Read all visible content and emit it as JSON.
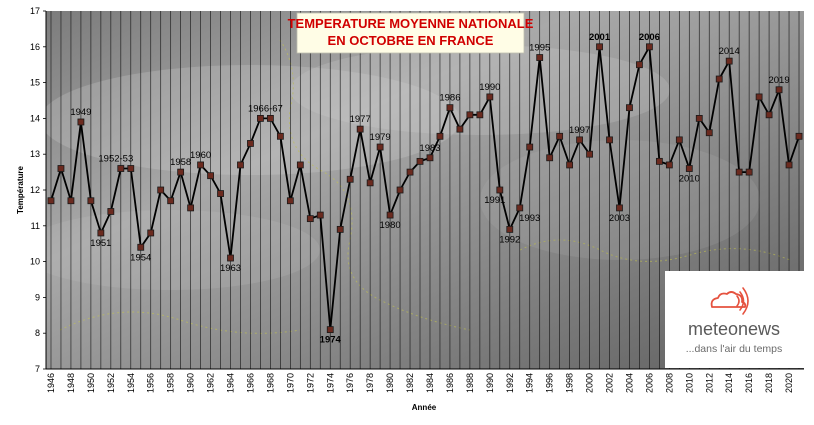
{
  "chart_data": {
    "type": "line",
    "title_lines": [
      "TEMPERATURE MOYENNE NATIONALE",
      "EN OCTOBRE EN FRANCE"
    ],
    "xlabel": "Année",
    "ylabel": "Température",
    "ylim": [
      7,
      17
    ],
    "yticks": [
      7,
      8,
      9,
      10,
      11,
      12,
      13,
      14,
      15,
      16,
      17
    ],
    "xlim": [
      1946,
      2021
    ],
    "xtick_labels": [
      "1946",
      "1948",
      "1950",
      "1952",
      "1954",
      "1956",
      "1958",
      "1960",
      "1962",
      "1964",
      "1966",
      "1968",
      "1970",
      "1972",
      "1974",
      "1976",
      "1978",
      "1980",
      "1982",
      "1984",
      "1986",
      "1988",
      "1990",
      "1992",
      "1994",
      "1996",
      "1998",
      "2000",
      "2002",
      "2004",
      "2006",
      "2008",
      "2010",
      "2012",
      "2014",
      "2016",
      "2018",
      "2020"
    ],
    "grid": "vertical",
    "series": [
      {
        "x": [
          1946,
          1947,
          1948,
          1949,
          1950,
          1951,
          1952,
          1953,
          1954,
          1955,
          1956,
          1957,
          1958,
          1959,
          1960,
          1961,
          1962,
          1963,
          1964,
          1965,
          1966,
          1967,
          1968,
          1969,
          1970,
          1971,
          1972,
          1973,
          1974,
          1975,
          1976,
          1977,
          1978,
          1979,
          1980,
          1981,
          1982,
          1983,
          1984,
          1985,
          1986,
          1987,
          1988,
          1989,
          1990,
          1991,
          1992,
          1993,
          1994,
          1995,
          1996,
          1997,
          1998,
          1999,
          2000,
          2001,
          2002,
          2003,
          2004,
          2005,
          2006,
          2007,
          2008,
          2009,
          2010,
          2011,
          2012,
          2013,
          2014,
          2015,
          2016,
          2017,
          2018,
          2019,
          2020,
          2021
        ],
        "y": [
          11.7,
          12.6,
          11.7,
          13.9,
          11.7,
          10.8,
          11.4,
          12.6,
          12.6,
          10.4,
          10.8,
          12.0,
          11.7,
          12.5,
          11.5,
          12.7,
          12.4,
          11.9,
          10.1,
          12.7,
          13.3,
          14.0,
          14.0,
          13.5,
          11.7,
          12.7,
          11.2,
          11.3,
          8.1,
          10.9,
          12.3,
          13.7,
          12.2,
          13.2,
          11.3,
          12.0,
          12.5,
          12.8,
          12.9,
          13.5,
          14.3,
          13.7,
          14.1,
          14.1,
          14.6,
          12.0,
          10.9,
          11.5,
          13.2,
          15.7,
          12.9,
          13.5,
          12.7,
          13.4,
          13.0,
          16.0,
          13.4,
          11.5,
          14.3,
          15.5,
          16.0,
          12.8,
          12.7,
          13.4,
          12.6,
          14.0,
          13.6,
          15.1,
          15.6,
          12.5,
          12.5,
          14.6,
          14.1,
          14.8,
          12.7,
          13.5
        ]
      }
    ],
    "annotations": [
      {
        "text": "1949",
        "x": 1949,
        "y": 13.9,
        "pos": "above",
        "color": "#000000"
      },
      {
        "text": "1951",
        "x": 1951,
        "y": 10.8,
        "pos": "below",
        "color": "#000000"
      },
      {
        "text": "1952-53",
        "x": 1952.5,
        "y": 12.6,
        "pos": "above",
        "color": "#000000"
      },
      {
        "text": "1954",
        "x": 1955,
        "y": 10.4,
        "pos": "below",
        "color": "#000000"
      },
      {
        "text": "1958",
        "x": 1959,
        "y": 12.5,
        "pos": "above",
        "color": "#000000"
      },
      {
        "text": "1960",
        "x": 1961,
        "y": 12.7,
        "pos": "above",
        "color": "#000000"
      },
      {
        "text": "1963",
        "x": 1964,
        "y": 10.1,
        "pos": "below",
        "color": "#000000"
      },
      {
        "text": "1966-67",
        "x": 1967.5,
        "y": 14.0,
        "pos": "above",
        "color": "#000000"
      },
      {
        "text": "1974",
        "x": 1974,
        "y": 8.1,
        "pos": "below",
        "color": "#2b3cff"
      },
      {
        "text": "1977",
        "x": 1977,
        "y": 13.7,
        "pos": "above",
        "color": "#000000"
      },
      {
        "text": "1979",
        "x": 1979,
        "y": 13.2,
        "pos": "above",
        "color": "#000000"
      },
      {
        "text": "1980",
        "x": 1980,
        "y": 11.3,
        "pos": "below",
        "color": "#000000"
      },
      {
        "text": "1983",
        "x": 1984,
        "y": 12.9,
        "pos": "above",
        "color": "#000000"
      },
      {
        "text": "1986",
        "x": 1986,
        "y": 14.3,
        "pos": "above",
        "color": "#000000"
      },
      {
        "text": "1990",
        "x": 1990,
        "y": 14.6,
        "pos": "above",
        "color": "#000000"
      },
      {
        "text": "1991",
        "x": 1990.5,
        "y": 12.0,
        "pos": "below",
        "color": "#000000"
      },
      {
        "text": "1992",
        "x": 1992,
        "y": 10.9,
        "pos": "below",
        "color": "#000000"
      },
      {
        "text": "1993",
        "x": 1994,
        "y": 11.5,
        "pos": "below",
        "color": "#000000"
      },
      {
        "text": "1995",
        "x": 1995,
        "y": 15.7,
        "pos": "above",
        "color": "#000000"
      },
      {
        "text": "1997",
        "x": 1999,
        "y": 13.4,
        "pos": "above",
        "color": "#000000"
      },
      {
        "text": "2001",
        "x": 2001,
        "y": 16.0,
        "pos": "above",
        "color": "#e00000"
      },
      {
        "text": "2003",
        "x": 2003,
        "y": 11.5,
        "pos": "below",
        "color": "#000000"
      },
      {
        "text": "2006",
        "x": 2006,
        "y": 16.0,
        "pos": "above",
        "color": "#e00000"
      },
      {
        "text": "2010",
        "x": 2010,
        "y": 12.6,
        "pos": "below",
        "color": "#000000"
      },
      {
        "text": "2014",
        "x": 2014,
        "y": 15.6,
        "pos": "above",
        "color": "#000000"
      },
      {
        "text": "2019",
        "x": 2019,
        "y": 14.8,
        "pos": "above",
        "color": "#000000"
      }
    ],
    "colors": {
      "line": "#000000",
      "marker_fill": "#6b2a1f",
      "marker_stroke": "#1a1a1a",
      "title_text": "#d00000",
      "title_box": "#fffde6",
      "plot_background": "#8a8a8a",
      "gridline": "#111111"
    }
  },
  "branding": {
    "name": "meteonews",
    "tagline": "...dans l'air du temps",
    "icon": "cloud-signal-icon",
    "icon_color": "#e5523f"
  }
}
